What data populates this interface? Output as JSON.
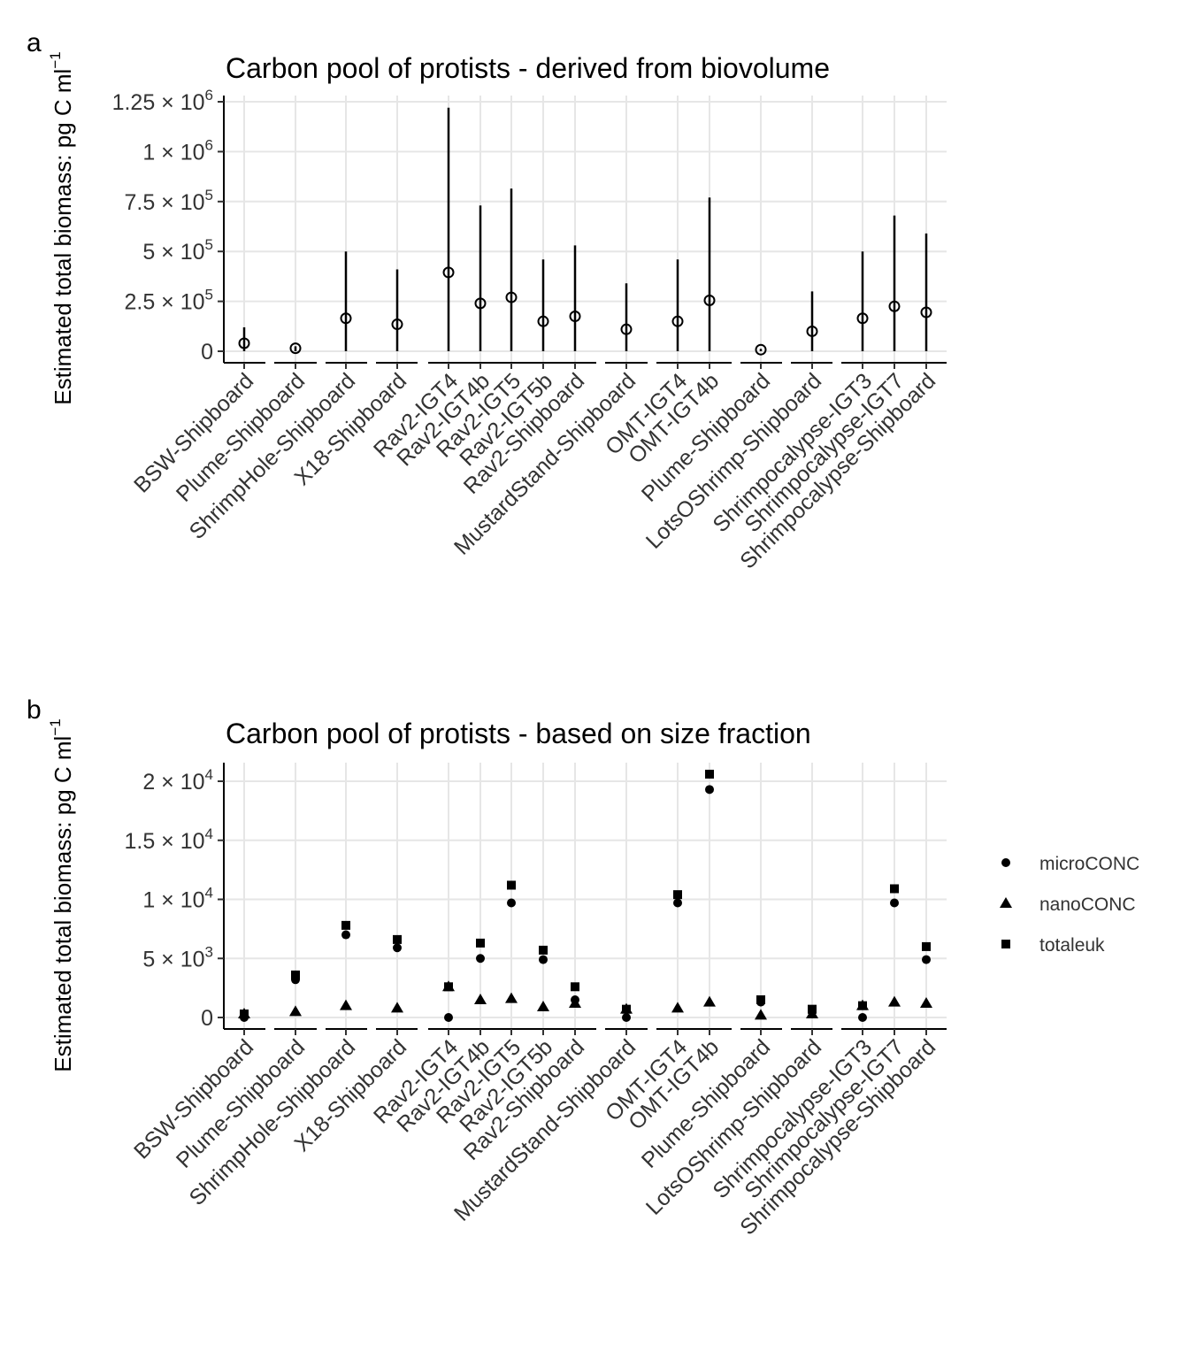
{
  "chart_data": [
    {
      "type": "scatter",
      "panel_label": "a",
      "title": "Carbon pool of protists - derived from biovolume",
      "ylabel": "Estimated total biomass: pg C ml-1",
      "ylim": [
        0,
        1250000
      ],
      "yticks": [
        {
          "value": 0,
          "mant": "0",
          "exp": ""
        },
        {
          "value": 250000,
          "mant": "2.5 × 10",
          "exp": "5"
        },
        {
          "value": 500000,
          "mant": "5 × 10",
          "exp": "5"
        },
        {
          "value": 750000,
          "mant": "7.5 × 10",
          "exp": "5"
        },
        {
          "value": 1000000,
          "mant": "1 × 10",
          "exp": "6"
        },
        {
          "value": 1250000,
          "mant": "1.25 × 10",
          "exp": "6"
        }
      ],
      "grid": true,
      "groups": [
        [
          0
        ],
        [
          1
        ],
        [
          2
        ],
        [
          3
        ],
        [
          4,
          5,
          6,
          7,
          8
        ],
        [
          9
        ],
        [
          10,
          11
        ],
        [
          12
        ],
        [
          13
        ],
        [
          14,
          15,
          16
        ]
      ],
      "categories": [
        "BSW-Shipboard",
        "Plume-Shipboard",
        "ShrimpHole-Shipboard",
        "X18-Shipboard",
        "Rav2-IGT4",
        "Rav2-IGT4b",
        "Rav2-IGT5",
        "Rav2-IGT5b",
        "Rav2-Shipboard",
        "MustardStand-Shipboard",
        "OMT-IGT4",
        "OMT-IGT4b",
        "Plume-Shipboard",
        "LotsOShrimp-Shipboard",
        "Shrimpocalypse-IGT3",
        "Shrimpocalypse-IGT7",
        "Shrimpocalypse-Shipboard"
      ],
      "values": [
        40000,
        15000,
        165000,
        135000,
        395000,
        240000,
        270000,
        150000,
        175000,
        110000,
        150000,
        255000,
        8000,
        100000,
        165000,
        225000,
        195000
      ],
      "upper": [
        120000,
        25000,
        500000,
        410000,
        1220000,
        730000,
        815000,
        460000,
        530000,
        340000,
        460000,
        770000,
        12000,
        300000,
        500000,
        680000,
        590000
      ],
      "lower": [
        0,
        0,
        0,
        0,
        0,
        0,
        0,
        0,
        0,
        0,
        0,
        0,
        0,
        0,
        0,
        0,
        0
      ]
    },
    {
      "type": "scatter",
      "panel_label": "b",
      "title": "Carbon pool of protists - based on size fraction",
      "ylabel": "Estimated total biomass: pg C ml-1",
      "ylim": [
        0,
        20000
      ],
      "yticks": [
        {
          "value": 0,
          "mant": "0",
          "exp": ""
        },
        {
          "value": 5000,
          "mant": "5 × 10",
          "exp": "3"
        },
        {
          "value": 10000,
          "mant": "1 × 10",
          "exp": "4"
        },
        {
          "value": 15000,
          "mant": "1.5 × 10",
          "exp": "4"
        },
        {
          "value": 20000,
          "mant": "2 × 10",
          "exp": "4"
        }
      ],
      "grid": true,
      "legend_position": "right",
      "groups": [
        [
          0
        ],
        [
          1
        ],
        [
          2
        ],
        [
          3
        ],
        [
          4,
          5,
          6,
          7,
          8
        ],
        [
          9
        ],
        [
          10,
          11
        ],
        [
          12
        ],
        [
          13
        ],
        [
          14,
          15,
          16
        ]
      ],
      "categories": [
        "BSW-Shipboard",
        "Plume-Shipboard",
        "ShrimpHole-Shipboard",
        "X18-Shipboard",
        "Rav2-IGT4",
        "Rav2-IGT4b",
        "Rav2-IGT5",
        "Rav2-IGT5b",
        "Rav2-Shipboard",
        "MustardStand-Shipboard",
        "OMT-IGT4",
        "OMT-IGT4b",
        "Plume-Shipboard",
        "LotsOShrimp-Shipboard",
        "Shrimpocalypse-IGT3",
        "Shrimpocalypse-IGT7",
        "Shrimpocalypse-Shipboard"
      ],
      "series": [
        {
          "name": "microCONC",
          "shape": "circle",
          "values": [
            0,
            3200,
            7000,
            5900,
            0,
            5000,
            9700,
            4900,
            1500,
            0,
            9700,
            19300,
            1300,
            500,
            0,
            9700,
            4900
          ]
        },
        {
          "name": "nanoCONC",
          "shape": "triangle",
          "values": [
            300,
            500,
            1000,
            800,
            2600,
            1500,
            1600,
            900,
            1200,
            700,
            800,
            1300,
            200,
            300,
            1000,
            1300,
            1200
          ]
        },
        {
          "name": "totaleuk",
          "shape": "square",
          "values": [
            300,
            3600,
            7800,
            6600,
            2600,
            6300,
            11200,
            5700,
            2600,
            700,
            10400,
            20600,
            1500,
            700,
            1000,
            10900,
            6000
          ]
        }
      ]
    }
  ]
}
